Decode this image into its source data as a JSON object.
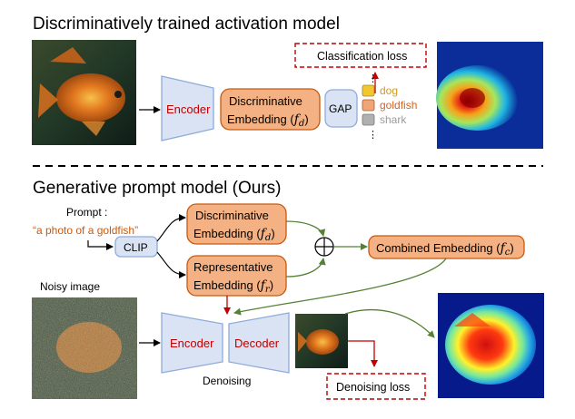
{
  "top": {
    "title": "Discriminatively trained activation model",
    "encoder": "Encoder",
    "embedding_line1": "Discriminative",
    "embedding_line2": "Embedding (",
    "embedding_var": "f",
    "embedding_sub": "d",
    "embedding_close": ")",
    "gap": "GAP",
    "loss": "Classification loss",
    "classes": [
      {
        "label": "dog",
        "color": "#f3c531"
      },
      {
        "label": "goldfish",
        "color": "#f0a477"
      },
      {
        "label": "shark",
        "color": "#b0b0b0"
      }
    ],
    "class_label_colors": {
      "dog": "#d59a1a",
      "goldfish": "#d5621e",
      "shark": "#9a9a9a"
    }
  },
  "bottom": {
    "title": "Generative prompt model (Ours)",
    "prompt_label": "Prompt :",
    "prompt_text": "“a photo of a goldfish”",
    "clip": "CLIP",
    "disc_line1": "Discriminative",
    "disc_line2": "Embedding (",
    "disc_var": "f",
    "disc_sub": "d",
    "rep_line1": "Representative",
    "rep_line2": "Embedding (",
    "rep_var": "f",
    "rep_sub": "r",
    "close_paren": ")",
    "plus": "⊕",
    "combined": "Combined Embedding (",
    "combined_var": "f",
    "combined_sub": "c",
    "noisy_label": "Noisy image",
    "encoder": "Encoder",
    "decoder": "Decoder",
    "denoising": "Denoising",
    "loss": "Denoising loss"
  },
  "colors": {
    "orange_box": "#f4b183",
    "orange_stroke": "#c55a11",
    "trap_fill": "#dae3f3",
    "trap_stroke": "#8faadc",
    "red_text": "#c00000",
    "green_arrow": "#548235",
    "prompt_color": "#c55a11"
  }
}
